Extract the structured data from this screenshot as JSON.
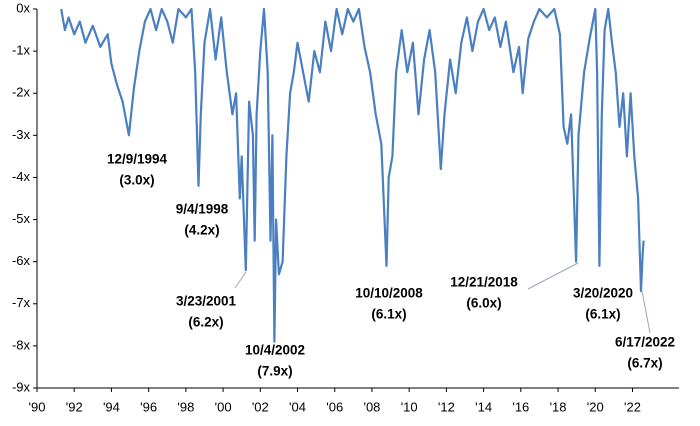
{
  "chart_data": {
    "type": "line",
    "x": [
      1991.3,
      1991.5,
      1991.7,
      1992.0,
      1992.3,
      1992.6,
      1993.0,
      1993.4,
      1993.8,
      1994.0,
      1994.3,
      1994.6,
      1994.94,
      1995.2,
      1995.5,
      1995.8,
      1996.1,
      1996.4,
      1996.7,
      1997.0,
      1997.3,
      1997.6,
      1998.0,
      1998.3,
      1998.5,
      1998.68,
      1998.8,
      1999.0,
      1999.3,
      1999.6,
      1999.9,
      2000.2,
      2000.5,
      2000.7,
      2000.9,
      2001.0,
      2001.22,
      2001.4,
      2001.6,
      2001.7,
      2001.8,
      2002.0,
      2002.2,
      2002.4,
      2002.55,
      2002.65,
      2002.76,
      2002.85,
      2003.0,
      2003.2,
      2003.4,
      2003.6,
      2003.8,
      2004.0,
      2004.3,
      2004.6,
      2004.9,
      2005.2,
      2005.5,
      2005.8,
      2006.1,
      2006.4,
      2006.7,
      2007.0,
      2007.3,
      2007.6,
      2007.9,
      2008.2,
      2008.5,
      2008.78,
      2008.9,
      2009.1,
      2009.3,
      2009.6,
      2009.9,
      2010.2,
      2010.5,
      2010.8,
      2011.1,
      2011.4,
      2011.7,
      2011.9,
      2012.2,
      2012.5,
      2012.8,
      2013.1,
      2013.4,
      2013.7,
      2014.0,
      2014.3,
      2014.6,
      2014.9,
      2015.2,
      2015.6,
      2015.9,
      2016.1,
      2016.4,
      2016.7,
      2017.0,
      2017.4,
      2017.8,
      2018.1,
      2018.3,
      2018.5,
      2018.7,
      2018.97,
      2019.1,
      2019.4,
      2019.7,
      2020.0,
      2020.1,
      2020.22,
      2020.35,
      2020.5,
      2020.7,
      2020.9,
      2021.1,
      2021.3,
      2021.5,
      2021.7,
      2021.9,
      2022.1,
      2022.3,
      2022.46,
      2022.55,
      2022.6
    ],
    "series": [
      {
        "color": "#4a7fc1",
        "values": [
          0,
          -0.5,
          -0.2,
          -0.6,
          -0.3,
          -0.8,
          -0.4,
          -0.9,
          -0.6,
          -1.3,
          -1.8,
          -2.2,
          -3.0,
          -1.9,
          -1.0,
          -0.3,
          0,
          -0.5,
          0,
          -0.3,
          -0.8,
          0,
          -0.2,
          0,
          -1.5,
          -4.2,
          -2.5,
          -0.8,
          0,
          -1.2,
          -0.2,
          -1.5,
          -2.5,
          -2.0,
          -4.5,
          -3.5,
          -6.2,
          -2.2,
          -3.0,
          -5.5,
          -2.5,
          -1.0,
          0,
          -1.5,
          -5.5,
          -3.0,
          -7.9,
          -5.0,
          -6.3,
          -6.0,
          -3.5,
          -2.0,
          -1.5,
          -0.8,
          -1.5,
          -2.2,
          -1.0,
          -1.5,
          -0.3,
          -1.0,
          0,
          -0.6,
          0,
          -0.3,
          0,
          -0.9,
          -1.5,
          -2.5,
          -3.2,
          -6.1,
          -4.0,
          -3.5,
          -1.5,
          -0.5,
          -1.5,
          -0.8,
          -2.5,
          -1.2,
          -0.5,
          -1.5,
          -3.8,
          -2.5,
          -1.2,
          -2.0,
          -0.8,
          -0.2,
          -1.0,
          -0.3,
          0,
          -0.5,
          -0.2,
          -0.9,
          -0.3,
          -1.5,
          -0.9,
          -2.0,
          -0.7,
          -0.3,
          0,
          -0.2,
          0,
          -0.6,
          -2.8,
          -3.2,
          -2.5,
          -6.0,
          -3.0,
          -1.5,
          -0.7,
          0,
          -1.5,
          -6.1,
          -2.5,
          -0.5,
          0,
          -0.8,
          -1.5,
          -2.8,
          -2.0,
          -3.5,
          -2.0,
          -3.5,
          -4.5,
          -6.7,
          -5.8,
          -5.5
        ]
      }
    ],
    "xlim": [
      1990,
      2024.5
    ],
    "ylim": [
      -9,
      0
    ],
    "xticks": [
      {
        "value": 1990,
        "label": "'90"
      },
      {
        "value": 1992,
        "label": "'92"
      },
      {
        "value": 1994,
        "label": "'94"
      },
      {
        "value": 1996,
        "label": "'96"
      },
      {
        "value": 1998,
        "label": "'98"
      },
      {
        "value": 2000,
        "label": "'00"
      },
      {
        "value": 2002,
        "label": "'02"
      },
      {
        "value": 2004,
        "label": "'04"
      },
      {
        "value": 2006,
        "label": "'06"
      },
      {
        "value": 2008,
        "label": "'08"
      },
      {
        "value": 2010,
        "label": "'10"
      },
      {
        "value": 2012,
        "label": "'12"
      },
      {
        "value": 2014,
        "label": "'14"
      },
      {
        "value": 2016,
        "label": "'16"
      },
      {
        "value": 2018,
        "label": "'18"
      },
      {
        "value": 2020,
        "label": "'20"
      },
      {
        "value": 2022,
        "label": "'22"
      }
    ],
    "yticks": [
      {
        "value": 0,
        "label": "0x"
      },
      {
        "value": -1,
        "label": "-1x"
      },
      {
        "value": -2,
        "label": "-2x"
      },
      {
        "value": -3,
        "label": "-3x"
      },
      {
        "value": -4,
        "label": "-4x"
      },
      {
        "value": -5,
        "label": "-5x"
      },
      {
        "value": -6,
        "label": "-6x"
      },
      {
        "value": -7,
        "label": "-7x"
      },
      {
        "value": -8,
        "label": "-8x"
      },
      {
        "value": -9,
        "label": "-9x"
      }
    ],
    "annotations": [
      {
        "date": "12/9/1994",
        "label": "(3.0x)"
      },
      {
        "date": "9/4/1998",
        "label": "(4.2x)"
      },
      {
        "date": "3/23/2001",
        "label": "(6.2x)"
      },
      {
        "date": "10/4/2002",
        "label": "(7.9x)"
      },
      {
        "date": "10/10/2008",
        "label": "(6.1x)"
      },
      {
        "date": "12/21/2018",
        "label": "(6.0x)"
      },
      {
        "date": "3/20/2020",
        "label": "(6.1x)"
      },
      {
        "date": "6/17/2022",
        "label": "(6.7x)"
      }
    ]
  }
}
